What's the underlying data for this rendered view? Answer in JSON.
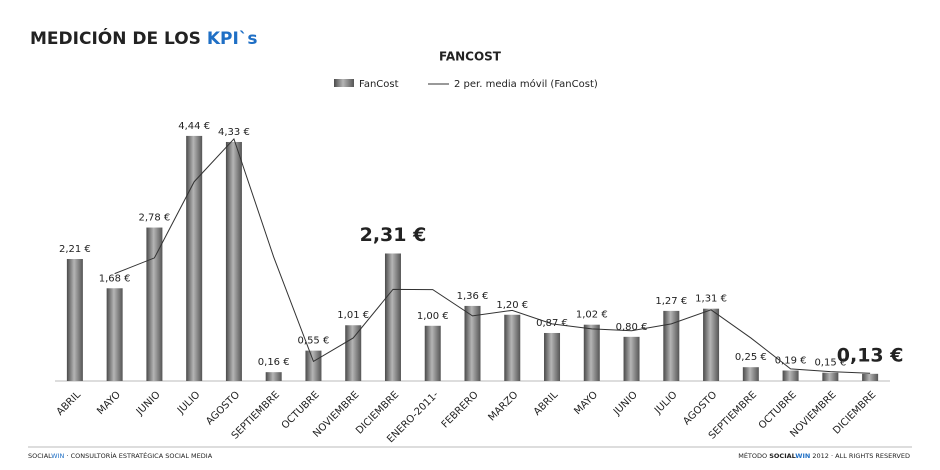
{
  "header": {
    "title": "MEDICIÓN DE LOS ",
    "title_highlight": "KPI`s"
  },
  "chart_data": {
    "type": "bar",
    "title": "FANCOST",
    "categories": [
      "ABRIL",
      "MAYO",
      "JUNIO",
      "JULIO",
      "AGOSTO",
      "SEPTIEMBRE",
      "OCTUBRE",
      "NOVIEMBRE",
      "DICIEMBRE",
      "ENERO-2011-",
      "FEBRERO",
      "MARZO",
      "ABRIL",
      "MAYO",
      "JUNIO",
      "JULIO",
      "AGOSTO",
      "SEPTIEMBRE",
      "OCTUBRE",
      "NOVIEMBRE",
      "DICIEMBRE"
    ],
    "series": [
      {
        "name": "FanCost",
        "color": "#7a7a7a",
        "values": [
          2.21,
          1.68,
          2.78,
          4.44,
          4.33,
          0.16,
          0.55,
          1.01,
          2.31,
          1.0,
          1.36,
          1.2,
          0.87,
          1.02,
          0.8,
          1.27,
          1.31,
          0.25,
          0.19,
          0.15,
          0.13
        ],
        "value_labels": [
          "2,21 €",
          "1,68 €",
          "2,78 €",
          "4,44 €",
          "4,33 €",
          "0,16 €",
          "0,55 €",
          "1,01 €",
          "2,31 €",
          "1,00 €",
          "1,36 €",
          "1,20 €",
          "0,87 €",
          "1,02 €",
          "0,80 €",
          "1,27 €",
          "1,31 €",
          "0,25 €",
          "0,19 €",
          "0,15 €",
          "0,13 €"
        ]
      },
      {
        "name": "2 per. media móvil (FanCost)",
        "color": "#333333",
        "type": "line",
        "values": [
          null,
          1.945,
          2.23,
          3.61,
          4.385,
          2.245,
          0.355,
          0.78,
          1.66,
          1.655,
          1.18,
          1.28,
          1.035,
          0.945,
          0.91,
          1.035,
          1.29,
          0.78,
          0.22,
          0.17,
          0.14
        ]
      }
    ],
    "emphasized_labels": [
      8,
      20
    ],
    "ylim": [
      0,
      5
    ],
    "legend": "top"
  },
  "footer": {
    "left_a": "SOCIAL",
    "left_b": "WIN",
    "left_c": " · CONSULTORÍA ESTRATÉGICA SOCIAL MEDIA",
    "right_a": "MÉTODO ",
    "right_b": "SOCIAL",
    "right_c": "WIN",
    "right_d": " 2012 · ALL RIGHTS RESERVED"
  }
}
